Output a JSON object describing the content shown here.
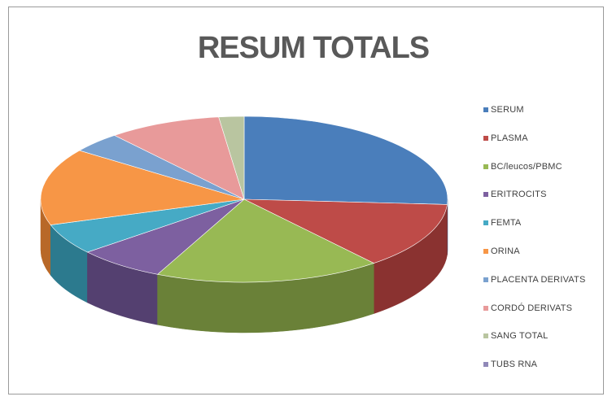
{
  "chart_data": {
    "type": "pie",
    "title": "RESUM TOTALS",
    "style": "3d",
    "legend_position": "right",
    "categories": [
      "SERUM",
      "PLASMA",
      "BC/leucos/PBMC",
      "ERITROCITS",
      "FEMTA",
      "ORINA",
      "PLACENTA DERIVATS",
      "CORDÓ DERIVATS",
      "SANG TOTAL",
      "TUBS RNA"
    ],
    "values": [
      26,
      13,
      18,
      7,
      6,
      15,
      4,
      9,
      2,
      0
    ],
    "colors": [
      "#4a7ebb",
      "#be4b48",
      "#98b954",
      "#7d60a0",
      "#46aac5",
      "#f79646",
      "#7aa1cf",
      "#e89a9a",
      "#b9c5a0",
      "#9088b8"
    ],
    "dark_colors": [
      "#2f5382",
      "#8a3230",
      "#6a8138",
      "#544070",
      "#2c7a8e",
      "#b86828",
      "#4f6f97",
      "#a86565",
      "#808a6e",
      "#625c82"
    ],
    "start_angle_deg": -90
  }
}
